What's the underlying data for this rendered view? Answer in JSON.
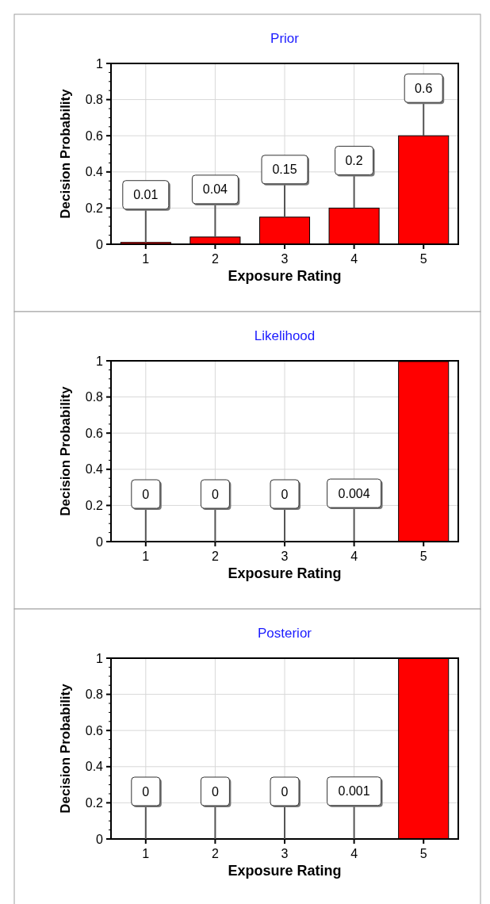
{
  "chart_data": [
    {
      "type": "bar",
      "title": "Prior",
      "xlabel": "Exposure Rating",
      "ylabel": "Decision Probability",
      "categories": [
        "1",
        "2",
        "3",
        "4",
        "5"
      ],
      "values": [
        0.01,
        0.04,
        0.15,
        0.2,
        0.6
      ],
      "value_labels": [
        "0.01",
        "0.04",
        "0.15",
        "0.2",
        "0.6"
      ],
      "color": "#ff0000",
      "ylim": [
        0,
        1
      ],
      "yticks": [
        0,
        0.2,
        0.4,
        0.6,
        0.8,
        1
      ],
      "grid": true
    },
    {
      "type": "bar",
      "title": "Likelihood",
      "xlabel": "Exposure Rating",
      "ylabel": "Decision Probability",
      "categories": [
        "1",
        "2",
        "3",
        "4",
        "5"
      ],
      "values": [
        0,
        0,
        0,
        0.004,
        0.996
      ],
      "value_labels": [
        "0",
        "0",
        "0",
        "0.004",
        null
      ],
      "color": "#ff0000",
      "ylim": [
        0,
        1
      ],
      "yticks": [
        0,
        0.2,
        0.4,
        0.6,
        0.8,
        1
      ],
      "grid": true
    },
    {
      "type": "bar",
      "title": "Posterior",
      "xlabel": "Exposure Rating",
      "ylabel": "Decision Probability",
      "categories": [
        "1",
        "2",
        "3",
        "4",
        "5"
      ],
      "values": [
        0,
        0,
        0,
        0.001,
        0.999
      ],
      "value_labels": [
        "0",
        "0",
        "0",
        "0.001",
        null
      ],
      "color": "#ff0000",
      "ylim": [
        0,
        1
      ],
      "yticks": [
        0,
        0.2,
        0.4,
        0.6,
        0.8,
        1
      ],
      "grid": true
    }
  ]
}
